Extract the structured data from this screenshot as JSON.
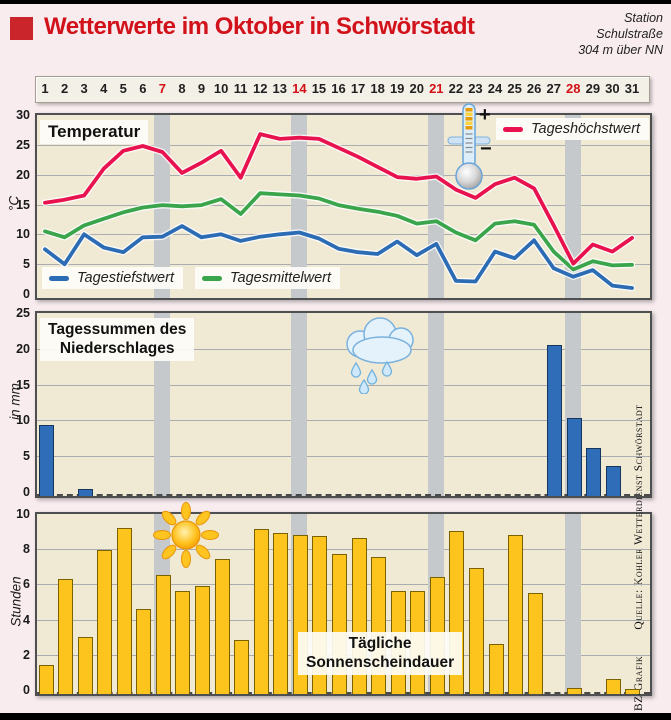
{
  "header": {
    "title": "Wetterwerte im Oktober in Schwörstadt",
    "station_lines": [
      "Station",
      "Schulstraße",
      "304 m über NN"
    ]
  },
  "day_strip": {
    "days": [
      1,
      2,
      3,
      4,
      5,
      6,
      7,
      8,
      9,
      10,
      11,
      12,
      13,
      14,
      15,
      16,
      17,
      18,
      19,
      20,
      21,
      22,
      23,
      24,
      25,
      26,
      27,
      28,
      29,
      30,
      31
    ],
    "sunday_days": [
      7,
      14,
      21,
      28
    ]
  },
  "charts": {
    "temperature": {
      "label": "Temperatur",
      "unit": "°C",
      "y_ticks": [
        30,
        25,
        20,
        15,
        10,
        5,
        0
      ],
      "legend": {
        "max": "Tageshöchstwert",
        "min": "Tagestiefstwert",
        "mean": "Tagesmittelwert"
      }
    },
    "precipitation": {
      "title_line1": "Tagessummen des",
      "title_line2": "Niederschlages",
      "unit": "in mm",
      "y_ticks": [
        25,
        20,
        15,
        10,
        5,
        0
      ]
    },
    "sunshine": {
      "title_line1": "Tägliche",
      "title_line2": "Sonnenscheindauer",
      "unit": "Stunden",
      "y_ticks": [
        10,
        8,
        6,
        4,
        2,
        0
      ]
    }
  },
  "icons": {
    "thermometer": "thermometer-icon",
    "rain_cloud": "rain-cloud-icon",
    "sun": "sun-icon",
    "plus": "+",
    "minus": "−"
  },
  "credits": {
    "graphic": "BZ-Grafik",
    "source": "Quelle: Kohler Wetterdienst Schwörstadt"
  },
  "colors": {
    "page_bg": "#f8ecef",
    "chart_bg": "#f0e9d4",
    "weekend_band": "#c6c9cb",
    "grid": "#a9adb0",
    "title_red": "#d2121a",
    "sunday_red": "#d40f15",
    "temp_max_red": "#e8134e",
    "temp_mean_green": "#3aa54a",
    "temp_min_blue": "#2c6cb4",
    "rain_bar_blue": "#2f6db8",
    "sun_bar_yellow": "#fcc41d"
  },
  "chart_data": [
    {
      "type": "line",
      "title": "Temperatur",
      "ylabel": "°C",
      "ylim": [
        0,
        30
      ],
      "grid_values": [
        25,
        20,
        15,
        10,
        5
      ],
      "x": [
        1,
        2,
        3,
        4,
        5,
        6,
        7,
        8,
        9,
        10,
        11,
        12,
        13,
        14,
        15,
        16,
        17,
        18,
        19,
        20,
        21,
        22,
        23,
        24,
        25,
        26,
        27,
        28,
        29,
        30,
        31
      ],
      "weekend_band_days": [
        7,
        14,
        21,
        28
      ],
      "legend_position": "max top-right, min and mean bottom-left",
      "series": [
        {
          "name": "Tageshöchstwert",
          "color": "#e8134e",
          "values": [
            15.3,
            15.8,
            16.5,
            21.0,
            24.0,
            24.8,
            23.8,
            20.3,
            22.0,
            24.0,
            19.5,
            26.8,
            26.0,
            26.2,
            26.0,
            24.5,
            23.0,
            21.3,
            19.6,
            19.3,
            19.7,
            17.5,
            16.1,
            18.4,
            19.5,
            17.7,
            11.5,
            5.1,
            8.3,
            7.1,
            9.4
          ]
        },
        {
          "name": "Tagesmittelwert",
          "color": "#3aa54a",
          "values": [
            10.5,
            9.5,
            11.5,
            12.6,
            13.7,
            14.5,
            14.9,
            14.7,
            14.9,
            15.9,
            13.4,
            16.9,
            16.7,
            16.5,
            16.0,
            14.9,
            14.3,
            13.8,
            13.1,
            11.8,
            12.2,
            10.3,
            9.0,
            11.8,
            12.2,
            11.6,
            7.1,
            4.1,
            5.5,
            4.8,
            4.9
          ]
        },
        {
          "name": "Tagestiefstwert",
          "color": "#2c6cb4",
          "values": [
            7.5,
            5.0,
            10.0,
            7.8,
            7.0,
            9.5,
            9.6,
            11.4,
            9.5,
            10.0,
            8.9,
            9.6,
            10.0,
            10.3,
            9.3,
            7.6,
            7.0,
            6.7,
            8.8,
            6.5,
            8.4,
            2.2,
            2.1,
            7.1,
            6.0,
            9.0,
            4.3,
            2.9,
            4.0,
            1.4,
            1.0
          ]
        }
      ]
    },
    {
      "type": "bar",
      "title": "Tagessummen des Niederschlages",
      "ylabel": "in mm",
      "ylim": [
        0,
        25
      ],
      "grid_values": [
        20,
        15,
        10,
        5
      ],
      "x": [
        1,
        2,
        3,
        4,
        5,
        6,
        7,
        8,
        9,
        10,
        11,
        12,
        13,
        14,
        15,
        16,
        17,
        18,
        19,
        20,
        21,
        22,
        23,
        24,
        25,
        26,
        27,
        28,
        29,
        30,
        31
      ],
      "weekend_band_days": [
        7,
        14,
        21,
        28
      ],
      "values": [
        9.8,
        0,
        0.8,
        0,
        0,
        0,
        0,
        0,
        0,
        0,
        0,
        0,
        0,
        0,
        0,
        0,
        0,
        0,
        0,
        0,
        0,
        0,
        0,
        0,
        0,
        0,
        21.0,
        10.7,
        6.5,
        4.1,
        0
      ]
    },
    {
      "type": "bar",
      "title": "Tägliche Sonnenscheindauer",
      "ylabel": "Stunden",
      "ylim": [
        0,
        10
      ],
      "grid_values": [
        8,
        6,
        4,
        2
      ],
      "x": [
        1,
        2,
        3,
        4,
        5,
        6,
        7,
        8,
        9,
        10,
        11,
        12,
        13,
        14,
        15,
        16,
        17,
        18,
        19,
        20,
        21,
        22,
        23,
        24,
        25,
        26,
        27,
        28,
        29,
        30,
        31
      ],
      "weekend_band_days": [
        7,
        14,
        21,
        28
      ],
      "values": [
        1.6,
        6.5,
        3.2,
        8.1,
        9.4,
        4.8,
        6.7,
        5.8,
        6.1,
        7.6,
        3.0,
        9.3,
        9.1,
        9.0,
        8.9,
        7.9,
        8.8,
        7.7,
        5.8,
        5.8,
        6.6,
        9.2,
        7.1,
        2.8,
        9.0,
        5.7,
        0,
        0.3,
        0,
        0.8,
        0.2
      ]
    }
  ]
}
